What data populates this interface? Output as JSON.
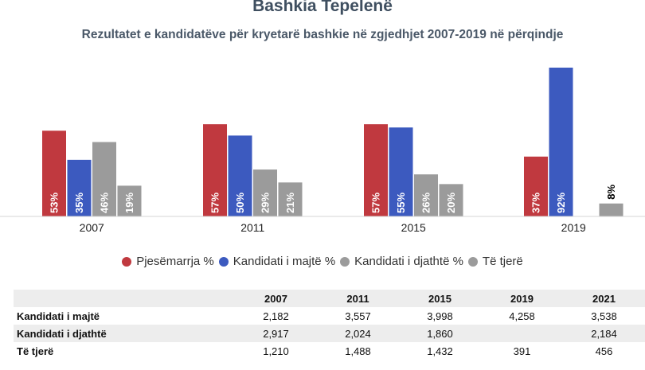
{
  "title": "Bashkia Tepelenë",
  "subtitle": "Rezultatet e kandidatëve për kryetarë bashkie në zgjedhjet 2007-2019 në përqindje",
  "chart_data": {
    "type": "bar",
    "categories": [
      "2007",
      "2011",
      "2015",
      "2019"
    ],
    "series": [
      {
        "name": "Pjesëmarrja %",
        "color": "#c0393f",
        "values": [
          53,
          57,
          57,
          37
        ]
      },
      {
        "name": "Kandidati i majtë %",
        "color": "#3c5abf",
        "values": [
          35,
          50,
          55,
          92
        ]
      },
      {
        "name": "Kandidati i djathtë %",
        "color": "#9b9b9b",
        "values": [
          46,
          29,
          26,
          null
        ]
      },
      {
        "name": "Të tjerë",
        "color": "#9b9b9b",
        "values": [
          19,
          21,
          20,
          8
        ]
      }
    ],
    "value_labels": [
      [
        "53%",
        "57%",
        "57%",
        "37%"
      ],
      [
        "35%",
        "50%",
        "55%",
        "92%"
      ],
      [
        "46%",
        "29%",
        "26%",
        ""
      ],
      [
        "19%",
        "21%",
        "20%",
        "8%"
      ]
    ],
    "ylim": [
      0,
      92
    ],
    "legend_position": "bottom",
    "grid": false
  },
  "legend": [
    {
      "label": "Pjesëmarrja %",
      "color": "#c0393f"
    },
    {
      "label": "Kandidati i majtë %",
      "color": "#3c5abf"
    },
    {
      "label": "Kandidati i djathtë %",
      "color": "#9b9b9b"
    },
    {
      "label": "Të tjerë",
      "color": "#9b9b9b"
    }
  ],
  "table": {
    "columns": [
      "2007",
      "2011",
      "2015",
      "2019",
      "2021"
    ],
    "rows": [
      {
        "label": "Kandidati i majtë",
        "values": [
          "2,182",
          "3,557",
          "3,998",
          "4,258",
          "3,538"
        ]
      },
      {
        "label": "Kandidati i djathtë",
        "values": [
          "2,917",
          "2,024",
          "1,860",
          "",
          "2,184"
        ]
      },
      {
        "label": "Të tjerë",
        "values": [
          "1,210",
          "1,488",
          "1,432",
          "391",
          "456"
        ]
      }
    ]
  }
}
